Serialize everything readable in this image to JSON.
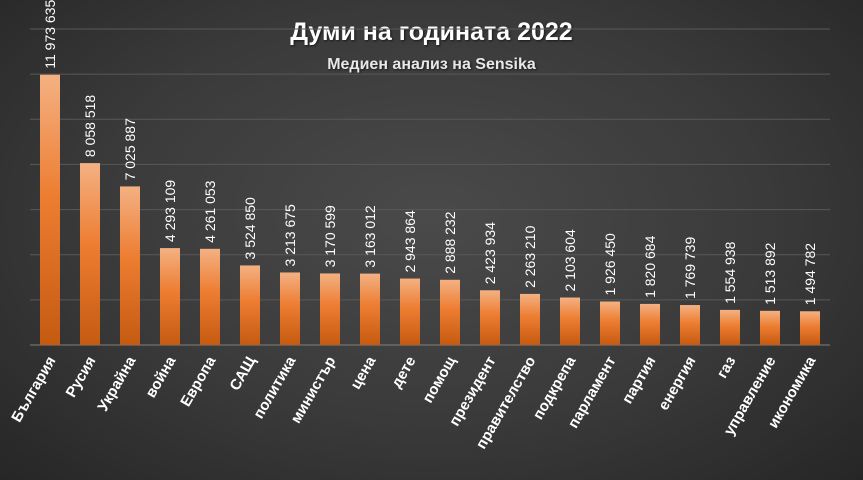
{
  "chart_data": {
    "type": "bar",
    "title": "Думи на годината 2022",
    "subtitle": "Медиен анализ на Sensika",
    "categories": [
      "България",
      "Русия",
      "Украйна",
      "война",
      "Европа",
      "САЩ",
      "политика",
      "министър",
      "цена",
      "дете",
      "помощ",
      "президент",
      "правителство",
      "подкрепа",
      "парламент",
      "партия",
      "енергия",
      "газ",
      "управление",
      "икономика"
    ],
    "values": [
      11973635,
      8058518,
      7025887,
      4293109,
      4261053,
      3524850,
      3213675,
      3170599,
      3163012,
      2943864,
      2888232,
      2423934,
      2263210,
      2103604,
      1926450,
      1820684,
      1769739,
      1554938,
      1513892,
      1494782
    ],
    "value_labels": [
      "11 973 635",
      "8 058 518",
      "7 025 887",
      "4 293 109",
      "4 261 053",
      "3 524 850",
      "3 213 675",
      "3 170 599",
      "3 163 012",
      "2 943 864",
      "2 888 232",
      "2 423 934",
      "2 263 210",
      "2 103 604",
      "1 926 450",
      "1 820 684",
      "1 769 739",
      "1 554 938",
      "1 513 892",
      "1 494 782"
    ],
    "ylim": [
      0,
      14000000
    ],
    "grid": true,
    "colors": {
      "bar_top": "#f4b183",
      "bar": "#ed7d31",
      "bar_bottom": "#c55a11",
      "grid": "#595959",
      "text": "#ffffff"
    }
  }
}
